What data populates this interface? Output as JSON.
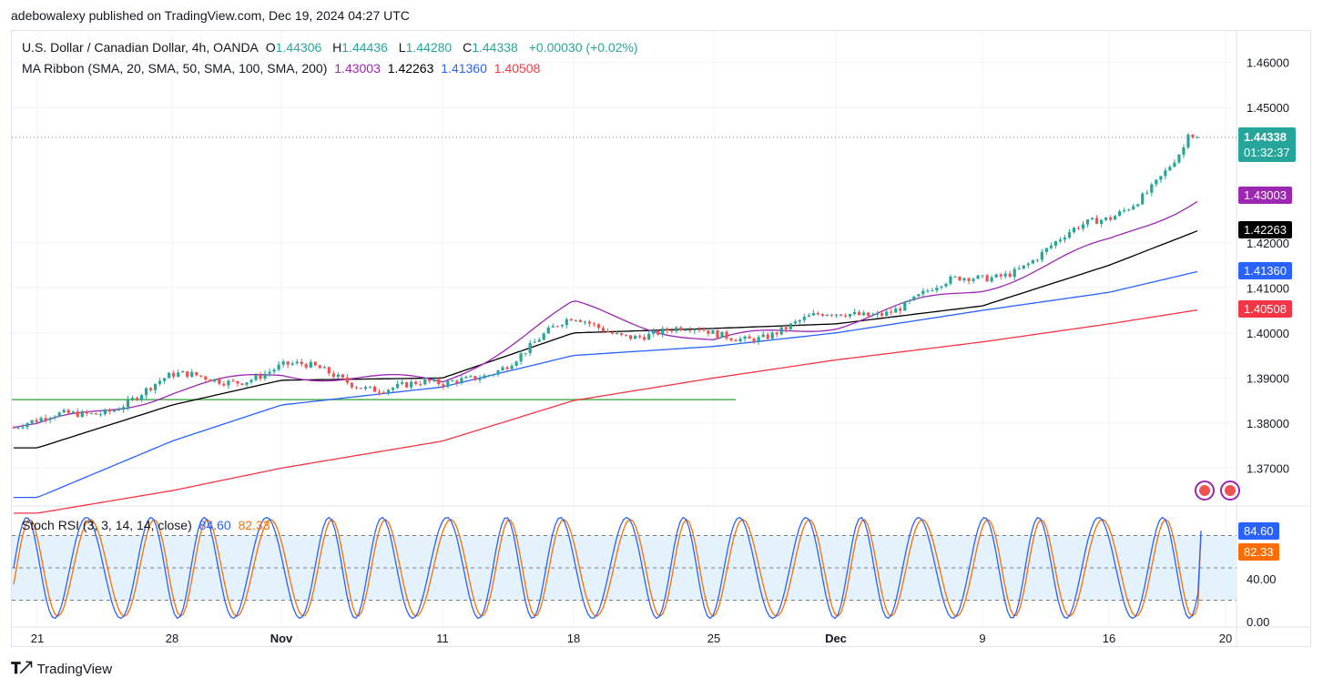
{
  "header": {
    "publisher": "adebowalexy published on TradingView.com, Dec 19, 2024 04:27 UTC"
  },
  "legend": {
    "symbol": "U.S. Dollar / Canadian Dollar, 4h, OANDA",
    "open_label": "O",
    "open": "1.44306",
    "high_label": "H",
    "high": "1.44436",
    "low_label": "L",
    "low": "1.44280",
    "close_label": "C",
    "close": "1.44338",
    "change": "+0.00030 (+0.02%)",
    "ma_title": "MA Ribbon (SMA, 20, SMA, 50, SMA, 100, SMA, 200)",
    "ma20": "1.43003",
    "ma50": "1.42263",
    "ma100": "1.41360",
    "ma200": "1.40508"
  },
  "price_labels": {
    "last": "1.44338",
    "countdown": "01:32:37",
    "ma20": "1.43003",
    "ma50": "1.42263",
    "ma100": "1.41360",
    "ma200": "1.40508"
  },
  "colors": {
    "up": "#26a69a",
    "down": "#ef5350",
    "ma20": "#9c27b0",
    "ma50": "#000000",
    "ma100": "#2962ff",
    "ma200": "#f23645",
    "support": "#4caf50",
    "stoch_k": "#2962ff",
    "stoch_d": "#ff6d00",
    "band": "#e3f2fd"
  },
  "stoch": {
    "title": "Stoch RSI (3, 3, 14, 14, close)",
    "k": "84.60",
    "d": "82.33"
  },
  "footer": {
    "brand": "TradingView"
  },
  "chart_data": {
    "type": "line",
    "title": "U.S. Dollar / Canadian Dollar, 4h, OANDA",
    "y_axis_ticks": [
      1.37,
      1.38,
      1.39,
      1.4,
      1.41,
      1.42,
      1.45,
      1.46
    ],
    "ylim": [
      1.362,
      1.467
    ],
    "x_axis_ticks": [
      "21",
      "28",
      "Nov",
      "11",
      "18",
      "25",
      "Dec",
      "9",
      "16",
      "20"
    ],
    "support_level": 1.3852,
    "last_price": 1.44338,
    "series": [
      {
        "name": "Close",
        "x": [
          "21",
          "28",
          "Nov",
          "11",
          "18",
          "25",
          "Dec",
          "9",
          "16",
          "20"
        ],
        "values": [
          1.379,
          1.389,
          1.392,
          1.387,
          1.402,
          1.399,
          1.403,
          1.412,
          1.425,
          1.44338
        ]
      },
      {
        "name": "SMA 20",
        "x": [
          "21",
          "28",
          "Nov",
          "11",
          "18",
          "25",
          "Dec",
          "9",
          "16",
          "20"
        ],
        "values": [
          1.379,
          1.387,
          1.391,
          1.389,
          1.406,
          1.398,
          1.402,
          1.41,
          1.42,
          1.43003
        ]
      },
      {
        "name": "SMA 50",
        "x": [
          "21",
          "28",
          "Nov",
          "11",
          "18",
          "25",
          "Dec",
          "9",
          "16",
          "20"
        ],
        "values": [
          1.3745,
          1.384,
          1.3895,
          1.39,
          1.4,
          1.401,
          1.402,
          1.406,
          1.415,
          1.42263
        ]
      },
      {
        "name": "SMA 100",
        "x": [
          "21",
          "28",
          "Nov",
          "11",
          "18",
          "25",
          "Dec",
          "9",
          "16",
          "20"
        ],
        "values": [
          1.3635,
          1.376,
          1.384,
          1.388,
          1.395,
          1.397,
          1.4,
          1.405,
          1.409,
          1.4136
        ]
      },
      {
        "name": "SMA 200",
        "x": [
          "21",
          "28",
          "Nov",
          "11",
          "18",
          "25",
          "Dec",
          "9",
          "16",
          "20"
        ],
        "values": [
          1.36,
          1.365,
          1.37,
          1.376,
          1.385,
          1.39,
          1.394,
          1.398,
          1.402,
          1.40508
        ]
      }
    ],
    "stoch_y_axis_ticks": [
      0,
      40
    ],
    "stoch_ylim": [
      -5,
      105
    ],
    "stoch_bands": [
      20,
      50,
      80
    ],
    "stoch_last": {
      "k": 84.6,
      "d": 82.33
    }
  }
}
